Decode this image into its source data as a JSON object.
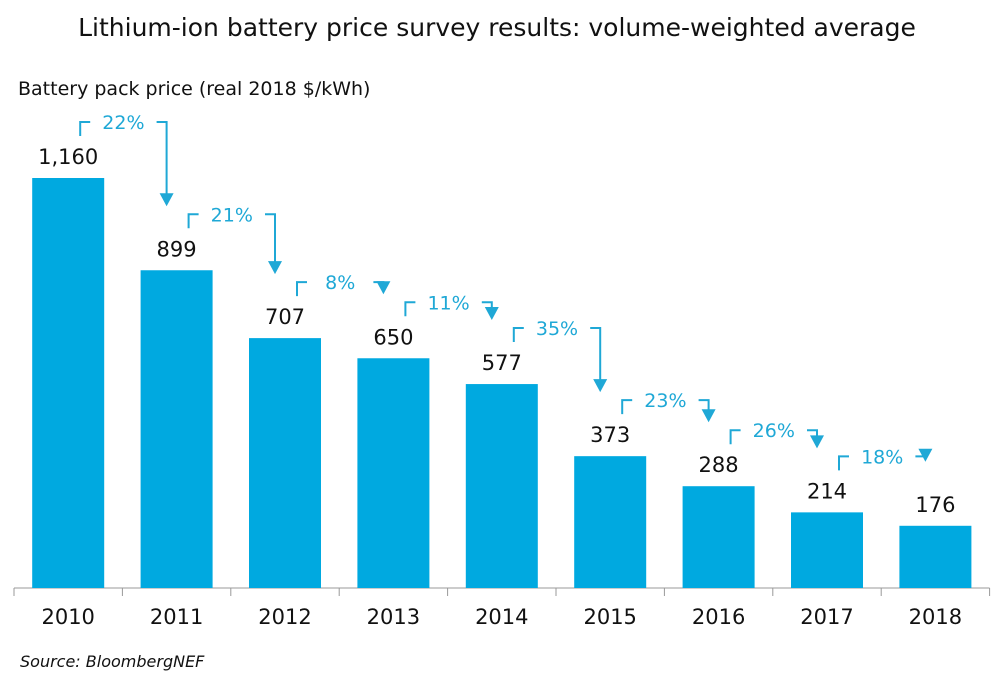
{
  "chart_data": {
    "type": "bar",
    "title": "Lithium-ion battery price survey results: volume-weighted average",
    "ylabel": "Battery pack price (real 2018 $/kWh)",
    "xlabel": "",
    "categories": [
      "2010",
      "2011",
      "2012",
      "2013",
      "2014",
      "2015",
      "2016",
      "2017",
      "2018"
    ],
    "values": [
      1160,
      899,
      707,
      650,
      577,
      373,
      288,
      214,
      176
    ],
    "value_labels": [
      "1,160",
      "899",
      "707",
      "650",
      "577",
      "373",
      "288",
      "214",
      "176"
    ],
    "changes": [
      "22%",
      "21%",
      "8%",
      "11%",
      "35%",
      "23%",
      "26%",
      "18%"
    ],
    "ylim": [
      0,
      1160
    ],
    "grid": false,
    "colors": {
      "bar": "#00a9e0",
      "annotation": "#1fa8d6"
    },
    "source": "Source: BloombergNEF"
  }
}
